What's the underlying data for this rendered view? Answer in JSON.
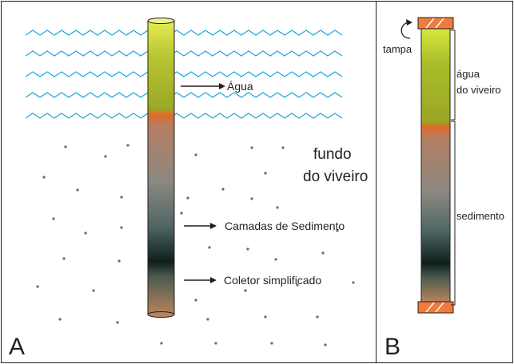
{
  "panel_a": {
    "letter": "A",
    "labels": {
      "water": "Água",
      "bottom_line1": "fundo",
      "bottom_line2": "do viveiro",
      "sediment_layers": "Camadas de Sedimento",
      "collector": "Coletor simplificado"
    }
  },
  "panel_b": {
    "letter": "B",
    "labels": {
      "cap": "tampa",
      "water_line1": "água",
      "water_line2": "do viveiro",
      "sediment": "sedimento"
    }
  },
  "colors": {
    "wave": "#1fa6d9",
    "sediment_dot": "#8a5a5a",
    "water_top": "#dfe94a",
    "water_bottom": "#a3b227",
    "interface": "#e06a2b",
    "sediment_dark": "#0e1f1a",
    "cap": "#ef7b3c"
  }
}
